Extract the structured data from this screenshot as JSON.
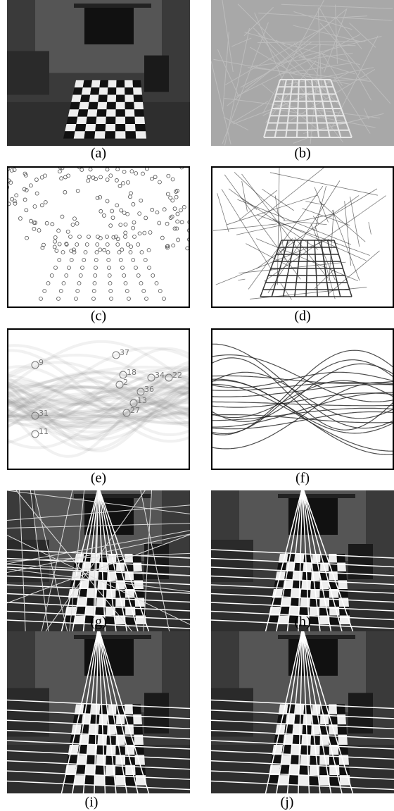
{
  "panels": [
    {
      "label": "(a)"
    },
    {
      "label": "(b)"
    },
    {
      "label": "(c)"
    },
    {
      "label": "(d)"
    },
    {
      "label": "(e)",
      "annotations": [
        "37",
        "18",
        "34",
        "22",
        "2",
        "36",
        "13",
        "27",
        "31",
        "11",
        "9"
      ]
    },
    {
      "label": "(f)"
    },
    {
      "label": "(g)"
    },
    {
      "label": "(h)"
    },
    {
      "label": "(i)"
    },
    {
      "label": "(j)"
    }
  ]
}
